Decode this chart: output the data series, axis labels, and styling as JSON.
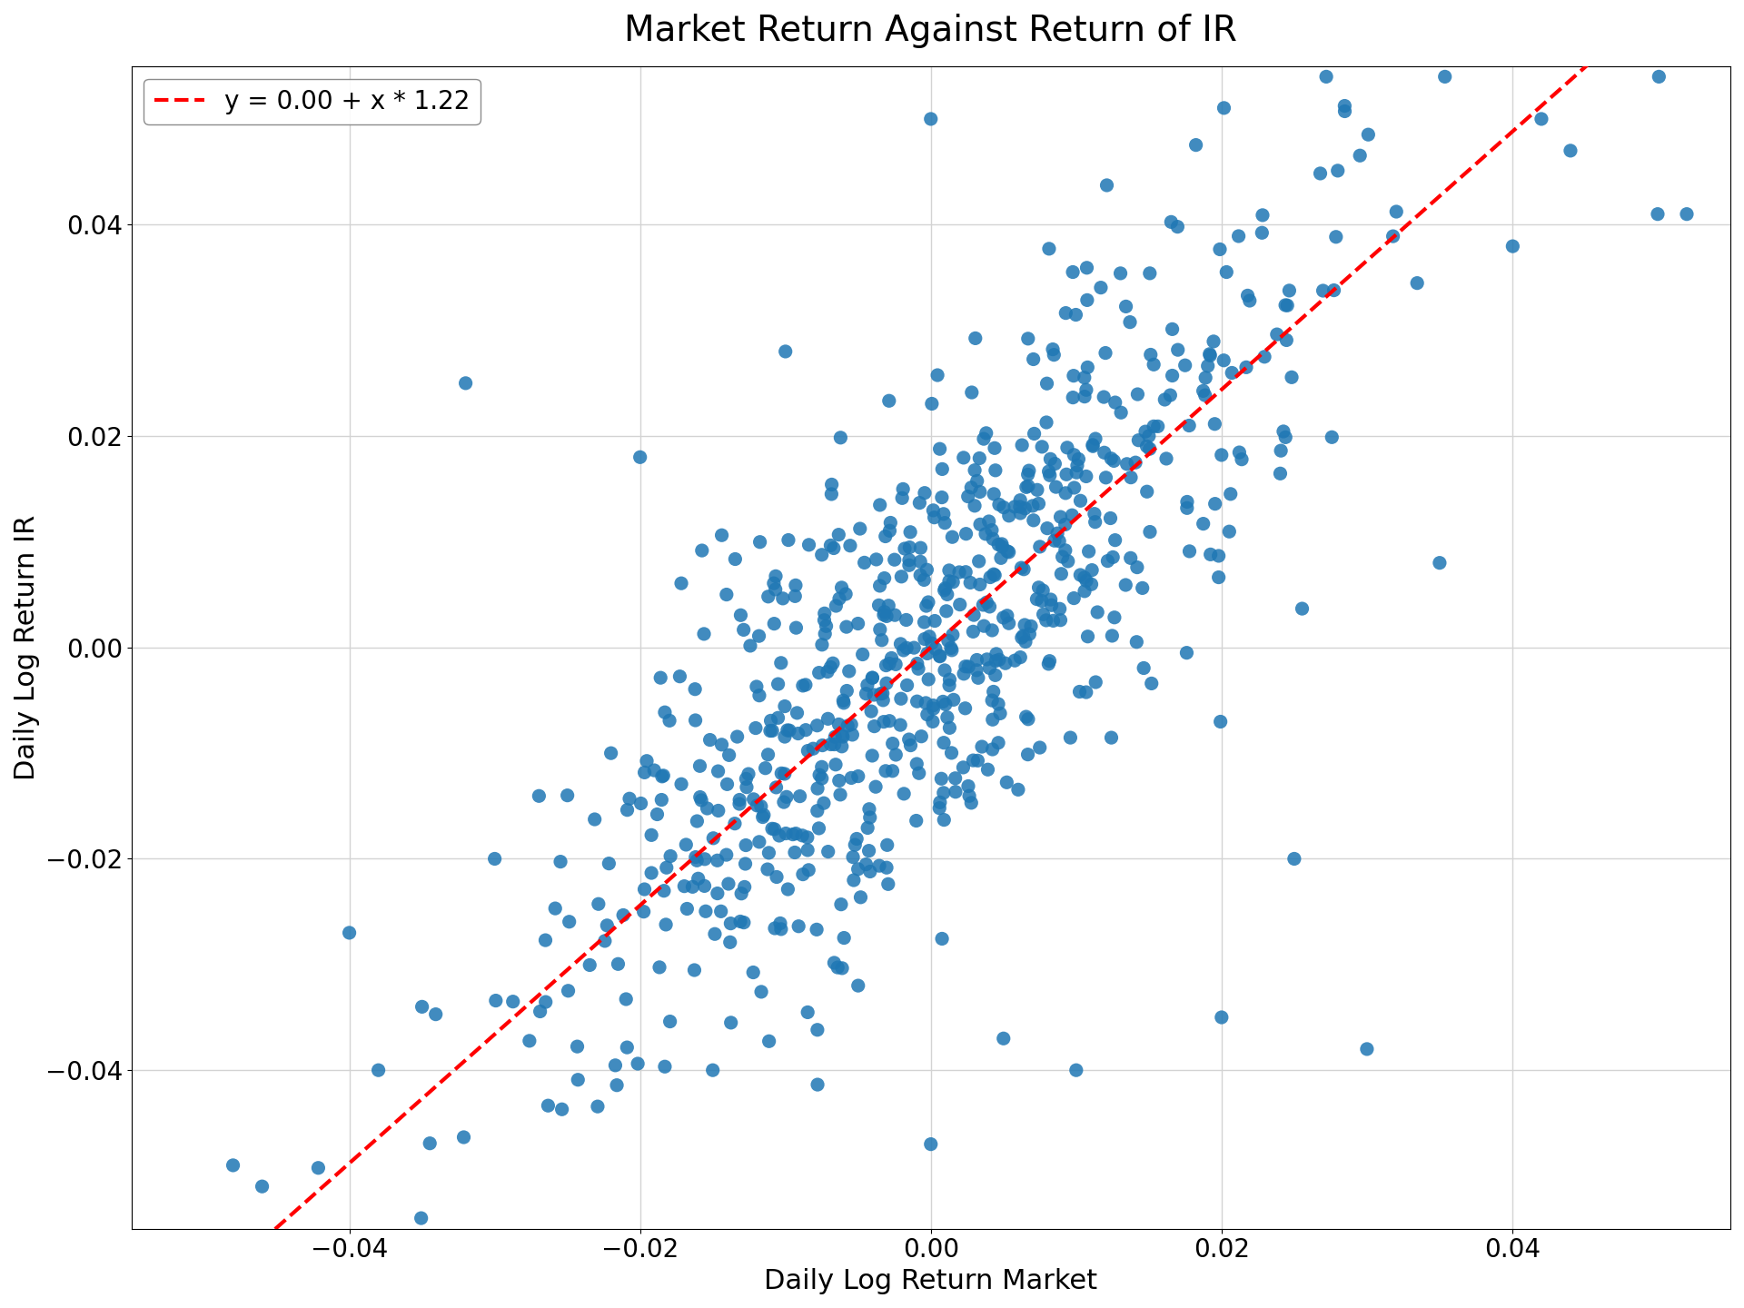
{
  "title": "Market Return Against Return of IR",
  "xlabel": "Daily Log Return Market",
  "ylabel": "Daily Log Return IR",
  "intercept": 0.0,
  "slope": 1.22,
  "legend_label": "y = 0.00 + x * 1.22",
  "xlim": [
    -0.055,
    0.055
  ],
  "ylim": [
    -0.055,
    0.055
  ],
  "xticks": [
    -0.04,
    -0.02,
    0.0,
    0.02,
    0.04
  ],
  "yticks": [
    -0.04,
    -0.02,
    0.0,
    0.02,
    0.04
  ],
  "scatter_color": "#1f77b4",
  "line_color": "red",
  "dot_size": 120,
  "dot_alpha": 0.85,
  "title_fontsize": 28,
  "label_fontsize": 22,
  "tick_fontsize": 20,
  "legend_fontsize": 20,
  "seed": 42,
  "n_points": 700,
  "market_std": 0.013,
  "noise_std": 0.011
}
